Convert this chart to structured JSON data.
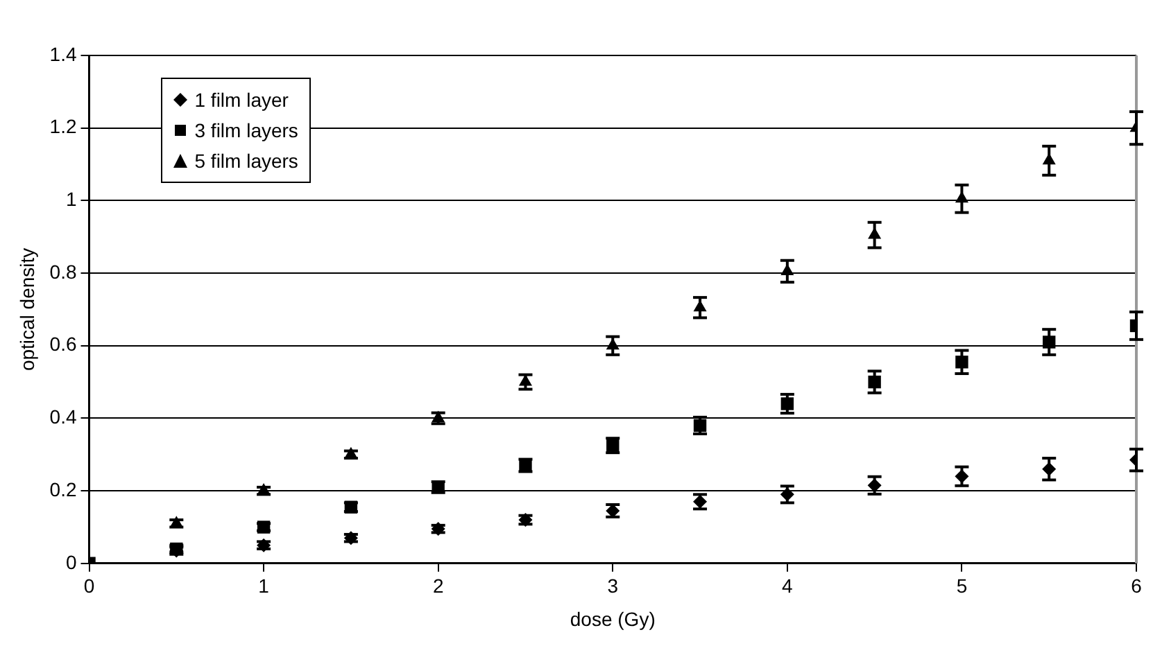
{
  "chart_data": {
    "type": "scatter",
    "xlabel": "dose (Gy)",
    "ylabel": "optical density",
    "x": [
      0,
      0.5,
      1,
      1.5,
      2,
      2.5,
      3,
      3.5,
      4,
      4.5,
      5,
      5.5,
      6
    ],
    "xlim": [
      0,
      6
    ],
    "xticks": [
      0,
      1,
      2,
      3,
      4,
      5,
      6
    ],
    "ylim": [
      0,
      1.4
    ],
    "yticks": [
      0,
      0.2,
      0.4,
      0.6,
      0.8,
      1,
      1.2,
      1.4
    ],
    "grid": "y",
    "legend": "top left",
    "series": [
      {
        "name": "1 film layer",
        "color": "#000000",
        "marker": "diamond",
        "values": [
          null,
          0.035,
          0.05,
          0.07,
          0.095,
          0.12,
          0.145,
          0.17,
          0.19,
          0.215,
          0.24,
          0.26,
          0.285
        ],
        "errors": [
          null,
          0.01,
          0.01,
          0.01,
          0.01,
          0.012,
          0.017,
          0.02,
          0.023,
          0.024,
          0.026,
          0.03,
          0.03
        ]
      },
      {
        "name": "3 film layers",
        "color": "#000000",
        "marker": "square",
        "values": [
          0,
          0.04,
          0.1,
          0.155,
          0.21,
          0.27,
          0.325,
          0.38,
          0.44,
          0.5,
          0.555,
          0.61,
          0.655
        ],
        "errors": [
          null,
          0.01,
          0.01,
          0.012,
          0.015,
          0.017,
          0.02,
          0.023,
          0.026,
          0.03,
          0.032,
          0.035,
          0.038
        ]
      },
      {
        "name": "5 film layers",
        "color": "#000000",
        "marker": "triangle",
        "values": [
          null,
          0.11,
          0.2,
          0.3,
          0.4,
          0.5,
          0.6,
          0.705,
          0.805,
          0.905,
          1.005,
          1.11,
          1.2
        ],
        "errors": [
          null,
          0.01,
          0.01,
          0.01,
          0.015,
          0.02,
          0.025,
          0.028,
          0.03,
          0.035,
          0.038,
          0.04,
          0.045
        ]
      }
    ]
  }
}
